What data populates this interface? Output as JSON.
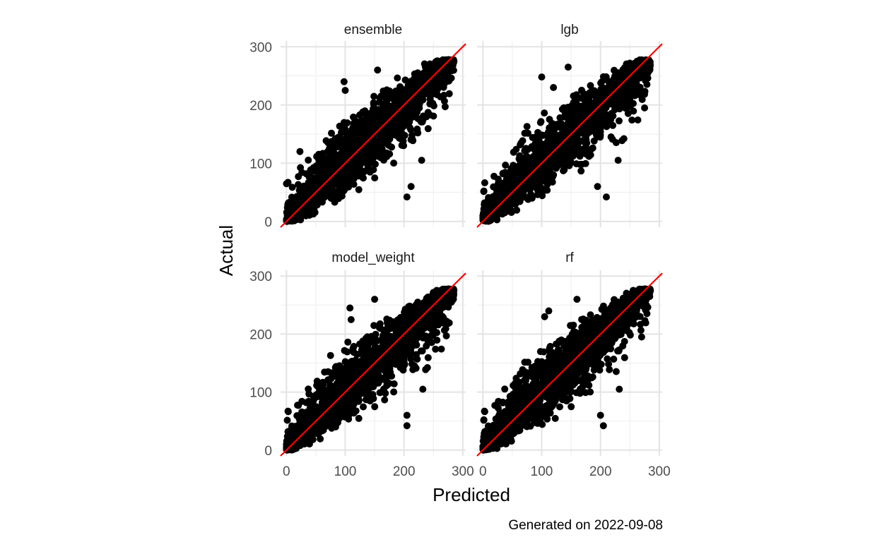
{
  "chart_data": {
    "type": "scatter",
    "layout": "facet-grid-2x2",
    "xlabel": "Predicted",
    "ylabel": "Actual",
    "caption": "Generated on 2022-09-08",
    "xlim": [
      -10,
      305
    ],
    "ylim": [
      -10,
      310
    ],
    "x_ticks": [
      0,
      100,
      200,
      300
    ],
    "y_ticks": [
      0,
      100,
      200,
      300
    ],
    "grid": true,
    "point_color": "#000000",
    "reference_line": {
      "slope": 1,
      "intercept": 0,
      "color": "#ff0000"
    },
    "panels": [
      {
        "title": "ensemble",
        "outliers": [
          [
            100,
            225
          ],
          [
            155,
            260
          ],
          [
            170,
            115
          ],
          [
            212,
            60
          ],
          [
            230,
            105
          ],
          [
            205,
            42
          ],
          [
            270,
            197
          ],
          [
            98,
            240
          ]
        ]
      },
      {
        "title": "lgb",
        "outliers": [
          [
            120,
            230
          ],
          [
            145,
            265
          ],
          [
            165,
            112
          ],
          [
            195,
            60
          ],
          [
            230,
            105
          ],
          [
            210,
            42
          ],
          [
            275,
            195
          ],
          [
            100,
            248
          ]
        ]
      },
      {
        "title": "model_weight",
        "outliers": [
          [
            110,
            225
          ],
          [
            150,
            260
          ],
          [
            175,
            115
          ],
          [
            205,
            60
          ],
          [
            232,
            105
          ],
          [
            205,
            42
          ],
          [
            272,
            197
          ],
          [
            108,
            245
          ]
        ]
      },
      {
        "title": "rf",
        "outliers": [
          [
            105,
            230
          ],
          [
            160,
            260
          ],
          [
            170,
            110
          ],
          [
            200,
            60
          ],
          [
            232,
            105
          ],
          [
            205,
            42
          ],
          [
            270,
            195
          ],
          [
            112,
            240
          ]
        ]
      }
    ]
  }
}
